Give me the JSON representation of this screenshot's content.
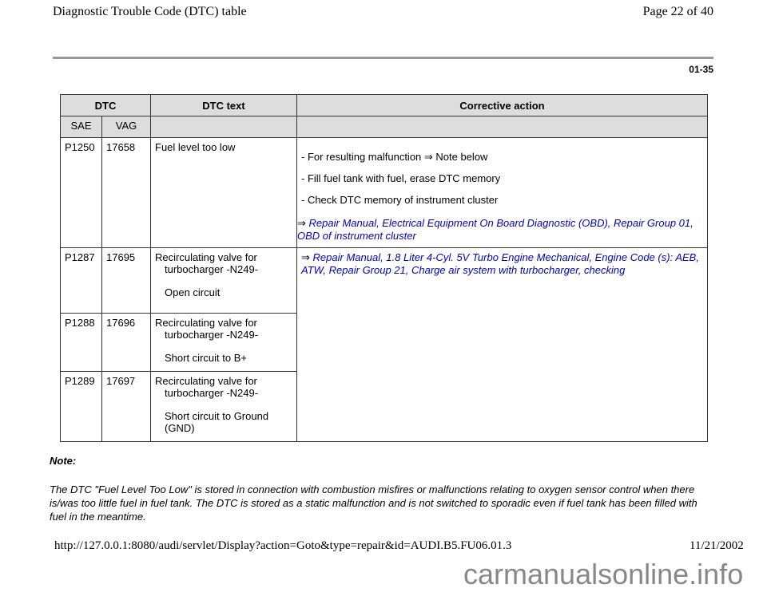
{
  "header": {
    "title": "Diagnostic Trouble Code (DTC) table",
    "page": "Page 22 of 40"
  },
  "section_number": "01-35",
  "table": {
    "headers": {
      "dtc": "DTC",
      "dtc_text": "DTC text",
      "corrective": "Corrective action",
      "sae": "SAE",
      "vag": "VAG"
    },
    "rows": [
      {
        "sae": "P1250",
        "vag": "17658",
        "text1": "Fuel level too low",
        "text2": ""
      },
      {
        "sae": "P1287",
        "vag": "17695",
        "text1": "Recirculating valve for",
        "text1b": "turbocharger -N249-",
        "text2": "Open circuit"
      },
      {
        "sae": "P1288",
        "vag": "17696",
        "text1": "Recirculating valve for",
        "text1b": "turbocharger -N249-",
        "text2": "Short circuit to B+"
      },
      {
        "sae": "P1289",
        "vag": "17697",
        "text1": "Recirculating valve for",
        "text1b": "turbocharger -N249-",
        "text2": "Short circuit to Ground (GND)"
      }
    ],
    "action1": {
      "items": [
        "- For resulting malfunction ⇒ Note below",
        "- Fill fuel tank with fuel, erase DTC memory",
        "- Check DTC memory of instrument cluster"
      ],
      "arrow": "⇒",
      "link": "Repair Manual, Electrical Equipment On Board Diagnostic (OBD), Repair Group 01, OBD of instrument cluster"
    },
    "action2": {
      "arrow": "⇒",
      "link": "Repair Manual, 1.8 Liter 4-Cyl. 5V Turbo Engine Mechanical, Engine Code (s): AEB, ATW, Repair Group 21, Charge air system with turbocharger, checking"
    }
  },
  "note": {
    "label": "Note:",
    "text": "The DTC \"Fuel Level Too Low\" is stored in connection with combustion misfires or malfunctions relating to oxygen sensor control when there is/was too little fuel in fuel tank. The DTC is stored as a static malfunction and is not switched to sporadic even if fuel tank has been filled with fuel in the meantime."
  },
  "footer": {
    "url": "http://127.0.0.1:8080/audi/servlet/Display?action=Goto&type=repair&id=AUDI.B5.FU06.01.3",
    "date": "11/21/2002",
    "watermark": "carmanualsonline.info"
  }
}
